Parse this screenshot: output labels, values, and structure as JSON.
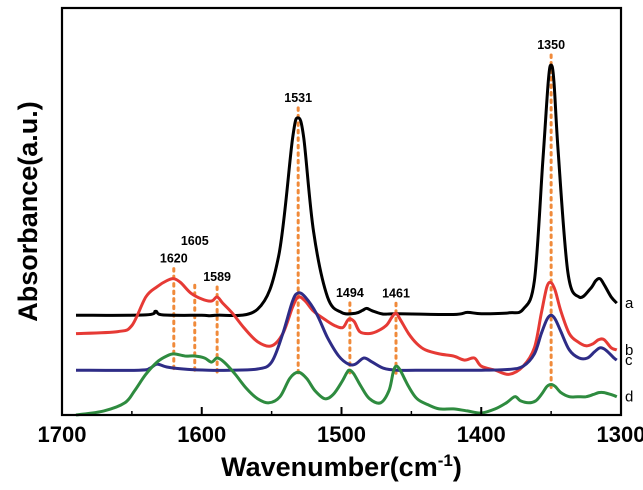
{
  "chart_data": {
    "type": "line",
    "xlabel": "Wavenumber(cm",
    "xlabel_sup": "-1",
    "xlabel_close": ")",
    "ylabel": "Absorbance(a.u.)",
    "xlim": [
      1700,
      1300
    ],
    "x_reversed": true,
    "ylim": [
      0,
      1
    ],
    "yticks_shown": false,
    "grid": false,
    "x_ticks": [
      1700,
      1600,
      1500,
      1400,
      1300
    ],
    "x_tick_labels": [
      "1700",
      "1600",
      "1500",
      "1400",
      "1300"
    ],
    "peaks": [
      {
        "x": 1620,
        "label": "1620"
      },
      {
        "x": 1605,
        "label": "1605"
      },
      {
        "x": 1589,
        "label": "1589"
      },
      {
        "x": 1531,
        "label": "1531"
      },
      {
        "x": 1494,
        "label": "1494"
      },
      {
        "x": 1461,
        "label": "1461"
      },
      {
        "x": 1350,
        "label": "1350"
      }
    ],
    "peak_marker_color": "#f08a3a",
    "series": [
      {
        "name": "a",
        "color": "#000000",
        "x": [
          1690,
          1640,
          1633,
          1628,
          1600,
          1590,
          1560,
          1545,
          1535,
          1531,
          1527,
          1520,
          1510,
          1500,
          1490,
          1485,
          1482,
          1478,
          1470,
          1460,
          1420,
          1410,
          1400,
          1380,
          1370,
          1362,
          1356,
          1352,
          1350,
          1348,
          1345,
          1338,
          1330,
          1322,
          1318,
          1315,
          1312,
          1307,
          1303
        ],
        "values": [
          0.245,
          0.246,
          0.255,
          0.246,
          0.245,
          0.245,
          0.26,
          0.39,
          0.68,
          0.73,
          0.68,
          0.45,
          0.29,
          0.252,
          0.25,
          0.257,
          0.262,
          0.256,
          0.248,
          0.249,
          0.247,
          0.252,
          0.249,
          0.251,
          0.26,
          0.33,
          0.62,
          0.82,
          0.86,
          0.82,
          0.65,
          0.35,
          0.29,
          0.31,
          0.33,
          0.335,
          0.32,
          0.29,
          0.275
        ]
      },
      {
        "name": "b",
        "color": "#e63a35",
        "x": [
          1690,
          1660,
          1650,
          1640,
          1632,
          1625,
          1620,
          1615,
          1608,
          1600,
          1593,
          1589,
          1585,
          1578,
          1570,
          1560,
          1550,
          1542,
          1535,
          1531,
          1526,
          1520,
          1512,
          1505,
          1499,
          1495,
          1491,
          1487,
          1481,
          1475,
          1468,
          1464,
          1461,
          1458,
          1452,
          1446,
          1440,
          1430,
          1420,
          1412,
          1405,
          1400,
          1390,
          1380,
          1370,
          1362,
          1357,
          1353,
          1350,
          1347,
          1343,
          1337,
          1331,
          1325,
          1320,
          1316,
          1312,
          1307,
          1303
        ],
        "values": [
          0.2,
          0.205,
          0.22,
          0.29,
          0.315,
          0.33,
          0.335,
          0.325,
          0.3,
          0.285,
          0.28,
          0.29,
          0.275,
          0.25,
          0.215,
          0.18,
          0.17,
          0.2,
          0.265,
          0.29,
          0.28,
          0.255,
          0.235,
          0.22,
          0.215,
          0.235,
          0.23,
          0.205,
          0.2,
          0.205,
          0.22,
          0.24,
          0.25,
          0.235,
          0.2,
          0.175,
          0.16,
          0.15,
          0.145,
          0.135,
          0.14,
          0.12,
          0.11,
          0.1,
          0.12,
          0.165,
          0.25,
          0.315,
          0.325,
          0.305,
          0.255,
          0.2,
          0.18,
          0.17,
          0.175,
          0.185,
          0.185,
          0.165,
          0.16
        ]
      },
      {
        "name": "c",
        "color": "#2e2c86",
        "x": [
          1690,
          1645,
          1637,
          1632,
          1625,
          1610,
          1595,
          1580,
          1560,
          1550,
          1542,
          1535,
          1531,
          1526,
          1518,
          1510,
          1502,
          1495,
          1490,
          1484,
          1478,
          1470,
          1460,
          1440,
          1420,
          1400,
          1380,
          1370,
          1362,
          1357,
          1353,
          1350,
          1347,
          1343,
          1337,
          1330,
          1324,
          1319,
          1315,
          1311,
          1305,
          1303
        ],
        "values": [
          0.11,
          0.11,
          0.115,
          0.125,
          0.118,
          0.112,
          0.11,
          0.11,
          0.113,
          0.13,
          0.2,
          0.28,
          0.3,
          0.29,
          0.25,
          0.19,
          0.145,
          0.125,
          0.125,
          0.14,
          0.13,
          0.115,
          0.11,
          0.11,
          0.11,
          0.11,
          0.112,
          0.12,
          0.15,
          0.2,
          0.235,
          0.245,
          0.235,
          0.205,
          0.16,
          0.14,
          0.14,
          0.155,
          0.165,
          0.16,
          0.14,
          0.135
        ]
      },
      {
        "name": "d",
        "color": "#2e8b3f",
        "x": [
          1690,
          1670,
          1655,
          1648,
          1640,
          1632,
          1625,
          1620,
          1612,
          1605,
          1598,
          1593,
          1589,
          1584,
          1576,
          1568,
          1560,
          1552,
          1544,
          1537,
          1531,
          1525,
          1519,
          1512,
          1506,
          1500,
          1496,
          1494,
          1491,
          1486,
          1480,
          1472,
          1466,
          1463,
          1461,
          1458,
          1452,
          1446,
          1438,
          1430,
          1420,
          1410,
          1400,
          1390,
          1382,
          1376,
          1372,
          1366,
          1361,
          1357,
          1353,
          1350,
          1347,
          1343,
          1337,
          1331,
          1325,
          1320,
          1316,
          1312,
          1307,
          1303
        ],
        "values": [
          0.0,
          0.01,
          0.03,
          0.06,
          0.1,
          0.13,
          0.145,
          0.15,
          0.145,
          0.145,
          0.14,
          0.13,
          0.14,
          0.13,
          0.1,
          0.065,
          0.04,
          0.03,
          0.045,
          0.09,
          0.105,
          0.09,
          0.06,
          0.04,
          0.05,
          0.08,
          0.105,
          0.11,
          0.1,
          0.07,
          0.04,
          0.03,
          0.06,
          0.105,
          0.12,
          0.11,
          0.07,
          0.04,
          0.025,
          0.015,
          0.015,
          0.01,
          0.005,
          0.015,
          0.03,
          0.045,
          0.035,
          0.03,
          0.035,
          0.05,
          0.07,
          0.075,
          0.07,
          0.055,
          0.045,
          0.045,
          0.045,
          0.05,
          0.055,
          0.055,
          0.05,
          0.045
        ]
      }
    ]
  }
}
